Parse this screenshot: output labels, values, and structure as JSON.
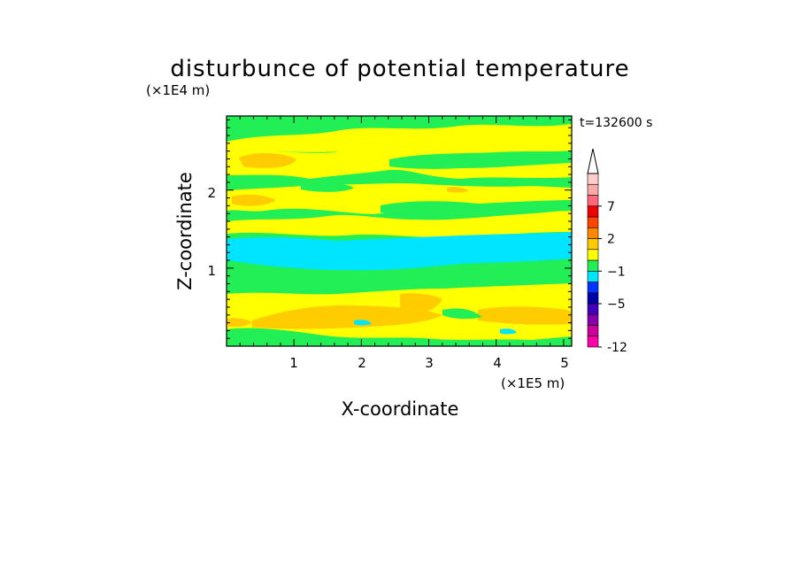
{
  "chart_data": {
    "type": "heatmap",
    "title": "disturbunce of potential temperature",
    "xlabel": "X-coordinate",
    "ylabel": "Z-coordinate",
    "x_scale_label": "(×1E5 m)",
    "y_scale_label": "(×1E4 m)",
    "time_label": "t=132600 s",
    "xlim": [
      0,
      5.12
    ],
    "ylim": [
      0,
      2.95
    ],
    "x_ticks": [
      1,
      2,
      3,
      4,
      5
    ],
    "y_ticks": [
      1,
      2
    ],
    "x_tick_labels": [
      "1",
      "2",
      "3",
      "4",
      "5"
    ],
    "y_tick_labels": [
      "1",
      "2"
    ],
    "colorbar": {
      "colors": [
        "#ff00aa",
        "#cc0099",
        "#8800aa",
        "#4400bb",
        "#0000aa",
        "#0033ff",
        "#00e5ff",
        "#22ee55",
        "#ffff00",
        "#ffcc00",
        "#ff8800",
        "#ff4400",
        "#ee0000",
        "#ff6677",
        "#ffaaaa",
        "#ffcccc"
      ],
      "labels": [
        {
          "text": "-12",
          "bin": 0
        },
        {
          "text": "−5",
          "bin": 4
        },
        {
          "text": "−1",
          "bin": 7
        },
        {
          "text": "2",
          "bin": 10
        },
        {
          "text": "7",
          "bin": 13
        }
      ],
      "extend_max": true
    },
    "field_regions": [
      {
        "name": "base",
        "color": "#22ee55"
      },
      {
        "name": "upper-yellow",
        "color": "#ffff00"
      },
      {
        "name": "cyan-band",
        "color": "#00e5ff"
      },
      {
        "name": "lower-orange",
        "color": "#ffcc00"
      }
    ]
  }
}
